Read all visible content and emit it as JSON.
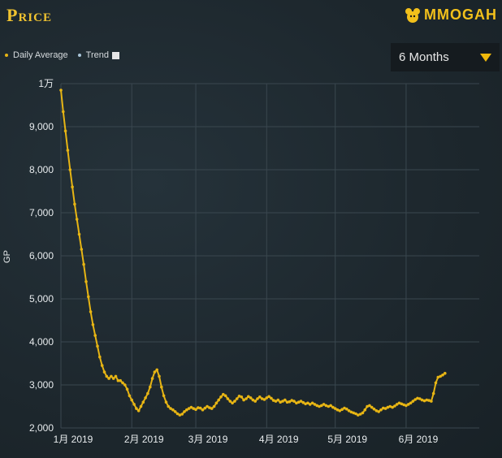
{
  "header": {
    "title": "Price",
    "logo_text": "MMOGAH"
  },
  "legend": {
    "items": [
      {
        "label": "Daily Average",
        "color": "#e7b514"
      },
      {
        "label": "Trend",
        "color": "#a9c6d9"
      }
    ]
  },
  "range_select": {
    "value": "6 Months"
  },
  "colors": {
    "accent": "#f0c330",
    "line": "#e7b514",
    "background": "#1f2a31"
  },
  "chart_data": {
    "type": "line",
    "ylabel": "GP",
    "ylim": [
      2000,
      10000
    ],
    "y_ticks": [
      "2,000",
      "3,000",
      "4,000",
      "5,000",
      "6,000",
      "7,000",
      "8,000",
      "9,000",
      "1万"
    ],
    "x_ticks": [
      "1月 2019",
      "2月 2019",
      "3月 2019",
      "4月 2019",
      "5月 2019",
      "6月 2019"
    ],
    "xlim": [
      "2019-01-01",
      "2019-07-03"
    ],
    "grid": true,
    "legend_placement": "top-left",
    "series": [
      {
        "name": "Daily Average",
        "points": [
          [
            "2019-01-01",
            9850
          ],
          [
            "2019-01-02",
            9350
          ],
          [
            "2019-01-03",
            8900
          ],
          [
            "2019-01-04",
            8450
          ],
          [
            "2019-01-05",
            8000
          ],
          [
            "2019-01-06",
            7600
          ],
          [
            "2019-01-07",
            7200
          ],
          [
            "2019-01-08",
            6850
          ],
          [
            "2019-01-09",
            6500
          ],
          [
            "2019-01-10",
            6150
          ],
          [
            "2019-01-11",
            5800
          ],
          [
            "2019-01-12",
            5400
          ],
          [
            "2019-01-13",
            5050
          ],
          [
            "2019-01-14",
            4700
          ],
          [
            "2019-01-15",
            4400
          ],
          [
            "2019-01-16",
            4150
          ],
          [
            "2019-01-17",
            3900
          ],
          [
            "2019-01-18",
            3650
          ],
          [
            "2019-01-19",
            3450
          ],
          [
            "2019-01-20",
            3300
          ],
          [
            "2019-01-21",
            3200
          ],
          [
            "2019-01-22",
            3150
          ],
          [
            "2019-01-23",
            3200
          ],
          [
            "2019-01-24",
            3150
          ],
          [
            "2019-01-25",
            3200
          ],
          [
            "2019-01-26",
            3100
          ],
          [
            "2019-01-27",
            3100
          ],
          [
            "2019-01-28",
            3050
          ],
          [
            "2019-01-29",
            3000
          ],
          [
            "2019-01-30",
            2900
          ],
          [
            "2019-01-31",
            2750
          ],
          [
            "2019-02-01",
            2650
          ],
          [
            "2019-02-02",
            2550
          ],
          [
            "2019-02-03",
            2450
          ],
          [
            "2019-02-04",
            2400
          ],
          [
            "2019-02-05",
            2500
          ],
          [
            "2019-02-06",
            2600
          ],
          [
            "2019-02-07",
            2700
          ],
          [
            "2019-02-08",
            2800
          ],
          [
            "2019-02-09",
            2950
          ],
          [
            "2019-02-10",
            3150
          ],
          [
            "2019-02-11",
            3300
          ],
          [
            "2019-02-12",
            3350
          ],
          [
            "2019-02-13",
            3200
          ],
          [
            "2019-02-14",
            2950
          ],
          [
            "2019-02-15",
            2750
          ],
          [
            "2019-02-16",
            2600
          ],
          [
            "2019-02-17",
            2500
          ],
          [
            "2019-02-18",
            2450
          ],
          [
            "2019-02-19",
            2420
          ],
          [
            "2019-02-20",
            2380
          ],
          [
            "2019-02-21",
            2330
          ],
          [
            "2019-02-22",
            2300
          ],
          [
            "2019-02-23",
            2320
          ],
          [
            "2019-02-24",
            2380
          ],
          [
            "2019-02-25",
            2420
          ],
          [
            "2019-02-26",
            2450
          ],
          [
            "2019-02-27",
            2480
          ],
          [
            "2019-02-28",
            2450
          ],
          [
            "2019-03-01",
            2430
          ],
          [
            "2019-03-02",
            2470
          ],
          [
            "2019-03-03",
            2460
          ],
          [
            "2019-03-04",
            2420
          ],
          [
            "2019-03-05",
            2460
          ],
          [
            "2019-03-06",
            2500
          ],
          [
            "2019-03-07",
            2470
          ],
          [
            "2019-03-08",
            2450
          ],
          [
            "2019-03-09",
            2500
          ],
          [
            "2019-03-10",
            2580
          ],
          [
            "2019-03-11",
            2650
          ],
          [
            "2019-03-12",
            2720
          ],
          [
            "2019-03-13",
            2780
          ],
          [
            "2019-03-14",
            2750
          ],
          [
            "2019-03-15",
            2680
          ],
          [
            "2019-03-16",
            2620
          ],
          [
            "2019-03-17",
            2580
          ],
          [
            "2019-03-18",
            2620
          ],
          [
            "2019-03-19",
            2680
          ],
          [
            "2019-03-20",
            2740
          ],
          [
            "2019-03-21",
            2720
          ],
          [
            "2019-03-22",
            2650
          ],
          [
            "2019-03-23",
            2680
          ],
          [
            "2019-03-24",
            2730
          ],
          [
            "2019-03-25",
            2700
          ],
          [
            "2019-03-26",
            2650
          ],
          [
            "2019-03-27",
            2620
          ],
          [
            "2019-03-28",
            2680
          ],
          [
            "2019-03-29",
            2720
          ],
          [
            "2019-03-30",
            2680
          ],
          [
            "2019-03-31",
            2660
          ],
          [
            "2019-04-01",
            2700
          ],
          [
            "2019-04-02",
            2730
          ],
          [
            "2019-04-03",
            2690
          ],
          [
            "2019-04-04",
            2640
          ],
          [
            "2019-04-05",
            2620
          ],
          [
            "2019-04-06",
            2650
          ],
          [
            "2019-04-07",
            2600
          ],
          [
            "2019-04-08",
            2620
          ],
          [
            "2019-04-09",
            2650
          ],
          [
            "2019-04-10",
            2600
          ],
          [
            "2019-04-11",
            2610
          ],
          [
            "2019-04-12",
            2640
          ],
          [
            "2019-04-13",
            2620
          ],
          [
            "2019-04-14",
            2580
          ],
          [
            "2019-04-15",
            2600
          ],
          [
            "2019-04-16",
            2620
          ],
          [
            "2019-04-17",
            2590
          ],
          [
            "2019-04-18",
            2560
          ],
          [
            "2019-04-19",
            2580
          ],
          [
            "2019-04-20",
            2550
          ],
          [
            "2019-04-21",
            2580
          ],
          [
            "2019-04-22",
            2550
          ],
          [
            "2019-04-23",
            2520
          ],
          [
            "2019-04-24",
            2500
          ],
          [
            "2019-04-25",
            2520
          ],
          [
            "2019-04-26",
            2550
          ],
          [
            "2019-04-27",
            2520
          ],
          [
            "2019-04-28",
            2500
          ],
          [
            "2019-04-29",
            2520
          ],
          [
            "2019-04-30",
            2480
          ],
          [
            "2019-05-01",
            2450
          ],
          [
            "2019-05-02",
            2420
          ],
          [
            "2019-05-03",
            2400
          ],
          [
            "2019-05-04",
            2430
          ],
          [
            "2019-05-05",
            2460
          ],
          [
            "2019-05-06",
            2440
          ],
          [
            "2019-05-07",
            2400
          ],
          [
            "2019-05-08",
            2370
          ],
          [
            "2019-05-09",
            2350
          ],
          [
            "2019-05-10",
            2330
          ],
          [
            "2019-05-11",
            2300
          ],
          [
            "2019-05-12",
            2320
          ],
          [
            "2019-05-13",
            2350
          ],
          [
            "2019-05-14",
            2420
          ],
          [
            "2019-05-15",
            2500
          ],
          [
            "2019-05-16",
            2520
          ],
          [
            "2019-05-17",
            2480
          ],
          [
            "2019-05-18",
            2440
          ],
          [
            "2019-05-19",
            2400
          ],
          [
            "2019-05-20",
            2380
          ],
          [
            "2019-05-21",
            2420
          ],
          [
            "2019-05-22",
            2460
          ],
          [
            "2019-05-23",
            2450
          ],
          [
            "2019-05-24",
            2480
          ],
          [
            "2019-05-25",
            2500
          ],
          [
            "2019-05-26",
            2480
          ],
          [
            "2019-05-27",
            2510
          ],
          [
            "2019-05-28",
            2550
          ],
          [
            "2019-05-29",
            2580
          ],
          [
            "2019-05-30",
            2560
          ],
          [
            "2019-05-31",
            2540
          ],
          [
            "2019-06-01",
            2520
          ],
          [
            "2019-06-02",
            2550
          ],
          [
            "2019-06-03",
            2580
          ],
          [
            "2019-06-04",
            2620
          ],
          [
            "2019-06-05",
            2660
          ],
          [
            "2019-06-06",
            2690
          ],
          [
            "2019-06-07",
            2680
          ],
          [
            "2019-06-08",
            2650
          ],
          [
            "2019-06-09",
            2630
          ],
          [
            "2019-06-10",
            2650
          ],
          [
            "2019-06-11",
            2640
          ],
          [
            "2019-06-12",
            2620
          ],
          [
            "2019-06-13",
            2800
          ],
          [
            "2019-06-14",
            3050
          ],
          [
            "2019-06-15",
            3180
          ],
          [
            "2019-06-16",
            3200
          ],
          [
            "2019-06-17",
            3230
          ],
          [
            "2019-06-18",
            3270
          ]
        ]
      }
    ]
  }
}
